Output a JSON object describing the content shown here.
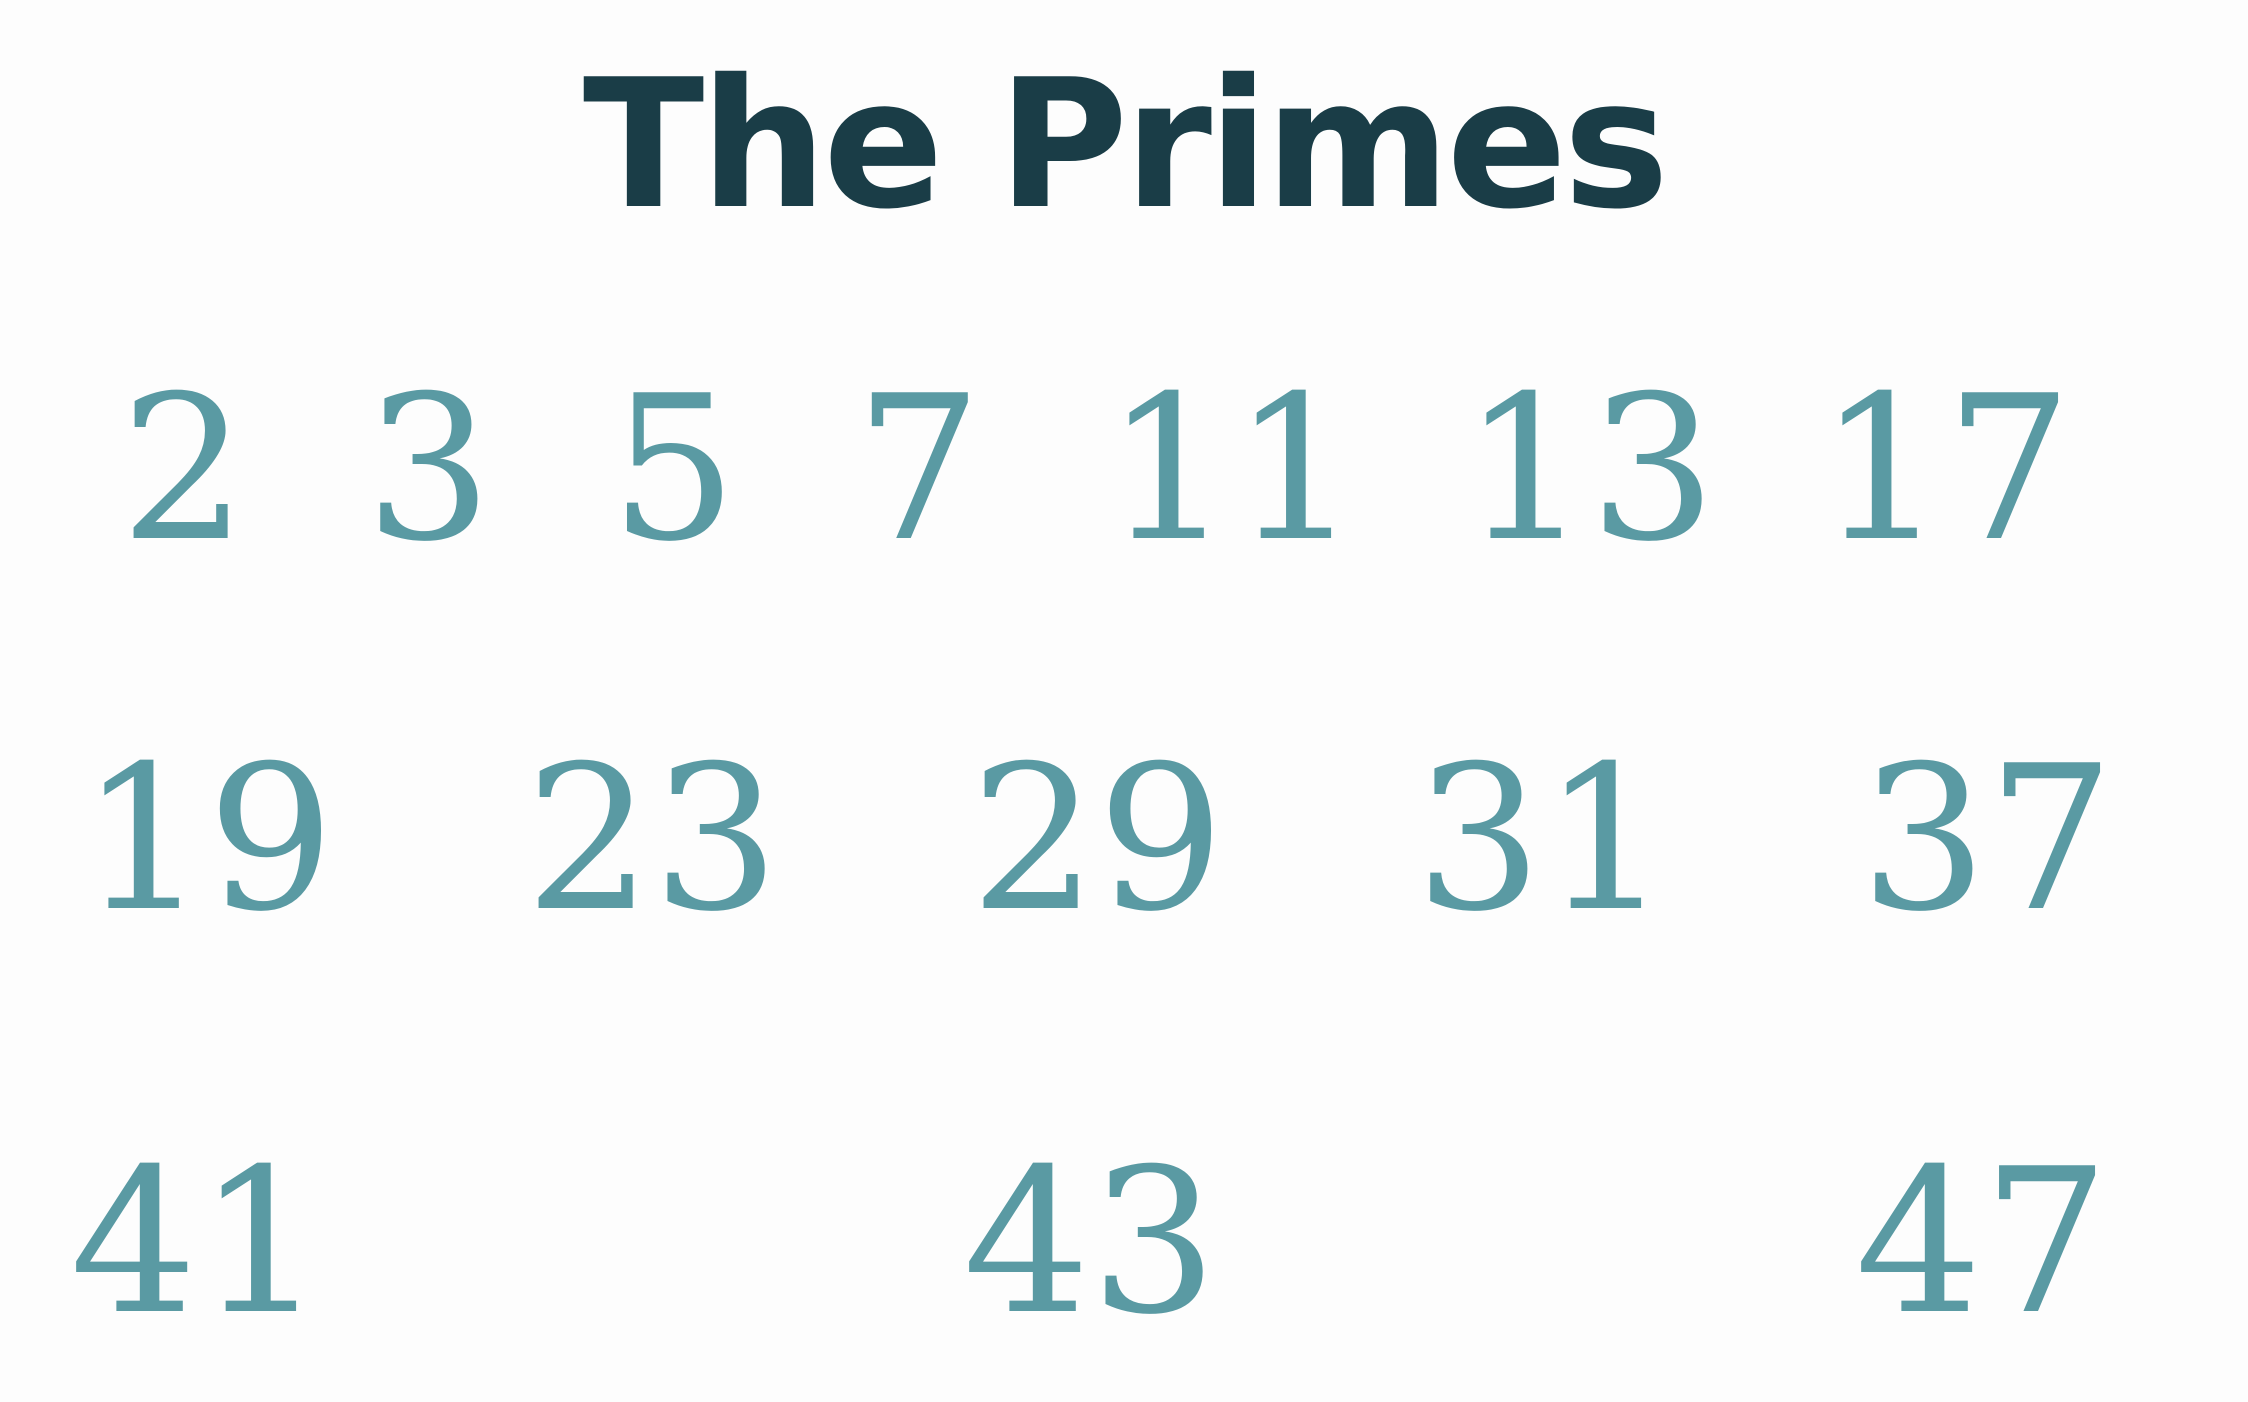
{
  "title": "The Primes",
  "primes": {
    "row1": [
      "2",
      "3",
      "5",
      "7",
      "11",
      "13",
      "17"
    ],
    "row2": [
      "19",
      "23",
      "29",
      "31",
      "37"
    ],
    "row3": [
      "41",
      "43",
      "47"
    ]
  },
  "colors": {
    "title": "#1a3d47",
    "numbers": "#5a9aa3",
    "background": "#fdfdfd"
  }
}
